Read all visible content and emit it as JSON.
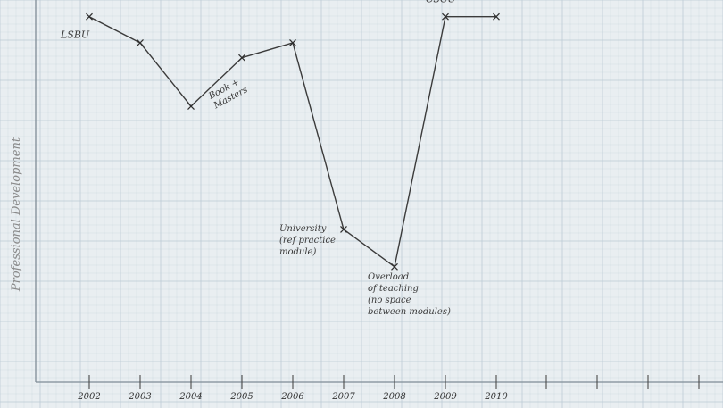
{
  "chart_data": {
    "type": "line",
    "categories": [
      "2002",
      "2003",
      "2004",
      "2005",
      "2006",
      "2007",
      "2008",
      "2009",
      "2010"
    ],
    "series": [
      {
        "values": [
          96,
          89,
          72,
          85,
          89,
          39,
          29,
          96,
          96
        ],
        "color": "#3b3b3b"
      }
    ],
    "x_tick_labels": [
      "2002",
      "2003",
      "2004",
      "2005",
      "2006",
      "2007",
      "2008",
      "2009",
      "2010"
    ],
    "ylabel": "Professional Development",
    "xlabel": "",
    "ylim": [
      0,
      100
    ],
    "grid": true,
    "paper_background": "#e9eef1",
    "grid_color": "#b9c8d3",
    "annotations": [
      {
        "x": "2002",
        "lines": [
          "LSBU"
        ]
      },
      {
        "x": "2004",
        "lines": [
          "Book +",
          "Masters"
        ]
      },
      {
        "x": "2007",
        "lines": [
          "University",
          "(ref practice",
          "module)"
        ]
      },
      {
        "x": "2008",
        "lines": [
          "Overload",
          "of teaching",
          "(no space",
          "between modules)"
        ]
      },
      {
        "x": "2009",
        "lines": [
          "CSCU"
        ]
      }
    ]
  }
}
